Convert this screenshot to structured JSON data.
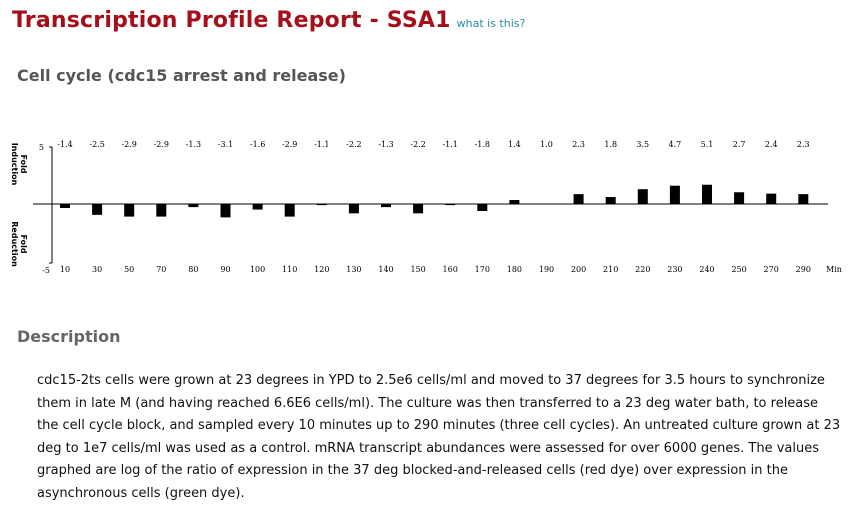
{
  "header": {
    "title": "Transcription Profile Report - SSA1",
    "help_link": "what is this?"
  },
  "section_title": "Cell cycle (cdc15 arrest and release)",
  "chart_data": {
    "type": "bar",
    "categories": [
      "10",
      "30",
      "50",
      "70",
      "80",
      "90",
      "100",
      "110",
      "120",
      "130",
      "140",
      "150",
      "160",
      "170",
      "180",
      "190",
      "200",
      "210",
      "220",
      "230",
      "240",
      "250",
      "270",
      "290"
    ],
    "values": [
      -1.4,
      -2.5,
      -2.9,
      -2.9,
      -1.3,
      -3.1,
      -1.6,
      -2.9,
      -1.1,
      -2.2,
      -1.3,
      -2.2,
      -1.1,
      -1.8,
      1.4,
      1.0,
      2.3,
      1.8,
      3.5,
      4.7,
      5.1,
      2.7,
      2.4,
      2.3
    ],
    "value_labels": [
      "-1.4",
      "-2.5",
      "-2.9",
      "-2.9",
      "-1.3",
      "-3.1",
      "-1.6",
      "-2.9",
      "-1.1",
      "-2.2",
      "-1.3",
      "-2.2",
      "-1.1",
      "-1.8",
      "1.4",
      "1.0",
      "2.3",
      "1.8",
      "3.5",
      "4.7",
      "5.1",
      "2.7",
      "2.4",
      "2.3"
    ],
    "y_axis_top_label": "5",
    "y_axis_bottom_label": "-5",
    "ylim": [
      -5,
      5
    ],
    "x_unit_label": "Min",
    "upper_label": [
      "Fold",
      "Induction"
    ],
    "lower_label": [
      "Fold",
      "Reduction"
    ],
    "bar_color": "#000000"
  },
  "description": {
    "heading": "Description",
    "text": "cdc15-2ts cells were grown at 23 degrees in YPD to 2.5e6 cells/ml and moved to 37 degrees for 3.5 hours to synchronize them in late M (and having reached 6.6E6 cells/ml). The culture was then transferred to a 23 deg water bath, to release the cell cycle block, and sampled every 10 minutes up to 290 minutes (three cell cycles). An untreated culture grown at 23 deg to 1e7 cells/ml was used as a control. mRNA transcript abundances were assessed for over 6000 genes. The values graphed are log of the ratio of expression in the 37 deg blocked-and-released cells (red dye) over expression in the asynchronous cells (green dye)."
  }
}
